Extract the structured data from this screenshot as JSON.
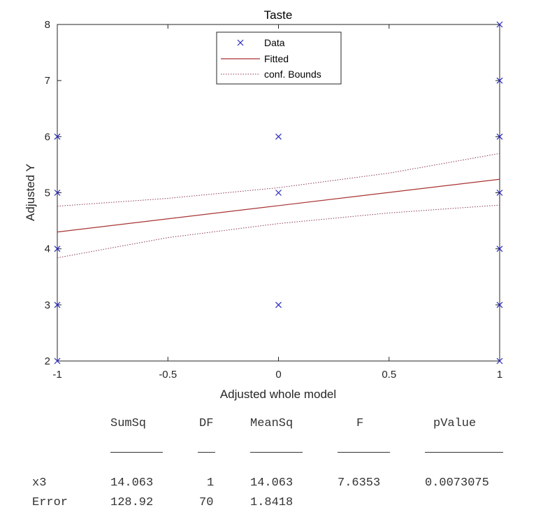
{
  "chart_data": {
    "type": "scatter",
    "title": "Taste",
    "xlabel": "Adjusted whole model",
    "ylabel": "Adjusted Y",
    "xlim": [
      -1,
      1
    ],
    "ylim": [
      2,
      8
    ],
    "xticks": [
      -1,
      -0.5,
      0,
      0.5,
      1
    ],
    "xtick_labels": [
      "-1",
      "-0.5",
      "0",
      "0.5",
      "1"
    ],
    "yticks": [
      2,
      3,
      4,
      5,
      6,
      7,
      8
    ],
    "ytick_labels": [
      "2",
      "3",
      "4",
      "5",
      "6",
      "7",
      "8"
    ],
    "grid": false,
    "legend": {
      "placement": "top-center",
      "entries": [
        "Data",
        "Fitted",
        "conf. Bounds"
      ]
    },
    "series": [
      {
        "name": "Data",
        "kind": "scatter",
        "marker": "x",
        "color": "#2b2bbf",
        "points": [
          [
            -1,
            6
          ],
          [
            -1,
            5
          ],
          [
            -1,
            4
          ],
          [
            -1,
            3
          ],
          [
            -1,
            2
          ],
          [
            0,
            6
          ],
          [
            0,
            5
          ],
          [
            0,
            3
          ],
          [
            1,
            8
          ],
          [
            1,
            7
          ],
          [
            1,
            6
          ],
          [
            1,
            5
          ],
          [
            1,
            4
          ],
          [
            1,
            3
          ],
          [
            1,
            2
          ]
        ]
      },
      {
        "name": "Fitted",
        "kind": "line",
        "color": "#a83232",
        "points": [
          [
            -1,
            4.3
          ],
          [
            0,
            4.77
          ],
          [
            1,
            5.24
          ]
        ]
      },
      {
        "name": "conf. Bounds",
        "kind": "dotted-line",
        "color": "#8a3a5a",
        "upper": [
          [
            -1,
            4.76
          ],
          [
            -0.5,
            4.9
          ],
          [
            0,
            5.09
          ],
          [
            0.5,
            5.35
          ],
          [
            1,
            5.7
          ]
        ],
        "lower": [
          [
            -1,
            3.84
          ],
          [
            -0.5,
            4.2
          ],
          [
            0,
            4.45
          ],
          [
            0.5,
            4.64
          ],
          [
            1,
            4.78
          ]
        ]
      }
    ]
  },
  "anova": {
    "headers": [
      "",
      "SumSq",
      "DF",
      "MeanSq",
      "F",
      "pValue"
    ],
    "rules": [
      "_______",
      "__",
      "_______",
      "_______",
      "__________"
    ],
    "rows": [
      [
        "x3",
        "14.063",
        "1",
        "14.063",
        "7.6353",
        "0.0073075"
      ],
      [
        "Error",
        "128.92",
        "70",
        "1.8418",
        "",
        ""
      ]
    ]
  }
}
